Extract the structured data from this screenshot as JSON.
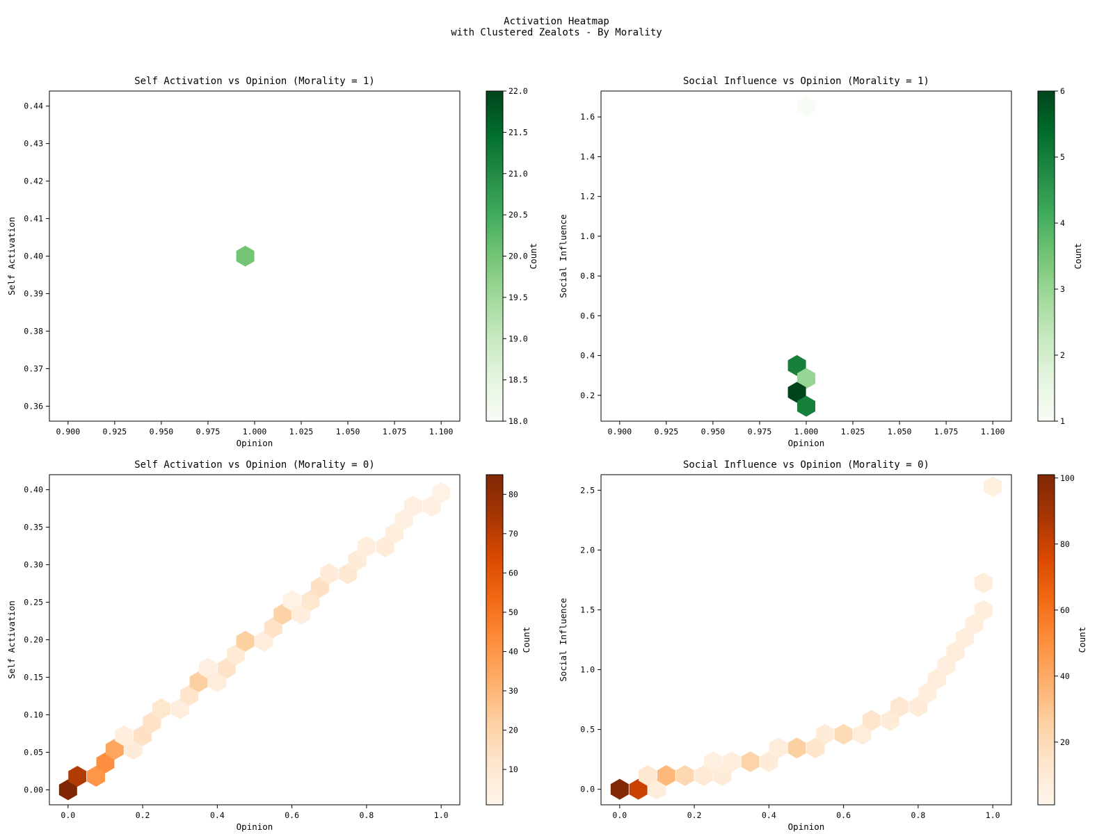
{
  "figure": {
    "title_line1": "Activation Heatmap",
    "title_line2": "with Clustered Zealots - By Morality"
  },
  "chart_data": [
    {
      "type": "heatmap",
      "title": "Self Activation vs Opinion (Morality = 1)",
      "xlabel": "Opinion",
      "ylabel": "Self Activation",
      "xlim": [
        0.89,
        1.11
      ],
      "ylim": [
        0.356,
        0.444
      ],
      "xticks": [
        0.9,
        0.925,
        0.95,
        0.975,
        1.0,
        1.025,
        1.05,
        1.075,
        1.1
      ],
      "xtick_labels": [
        "0.900",
        "0.925",
        "0.950",
        "0.975",
        "1.000",
        "1.025",
        "1.050",
        "1.075",
        "1.100"
      ],
      "yticks": [
        0.36,
        0.37,
        0.38,
        0.39,
        0.4,
        0.41,
        0.42,
        0.43,
        0.44
      ],
      "ytick_labels": [
        "0.36",
        "0.37",
        "0.38",
        "0.39",
        "0.40",
        "0.41",
        "0.42",
        "0.43",
        "0.44"
      ],
      "colorscale": "Greens",
      "colorbar": {
        "label": "Count",
        "min": 18.0,
        "max": 22.0,
        "ticks": [
          18.0,
          18.5,
          19.0,
          19.5,
          20.0,
          20.5,
          21.0,
          21.5,
          22.0
        ],
        "tick_labels": [
          "18.0",
          "18.5",
          "19.0",
          "19.5",
          "20.0",
          "20.5",
          "21.0",
          "21.5",
          "22.0"
        ]
      },
      "cells": [
        {
          "x": 0.995,
          "y": 0.4,
          "count": 20
        }
      ]
    },
    {
      "type": "heatmap",
      "title": "Social Influence vs Opinion (Morality = 1)",
      "xlabel": "Opinion",
      "ylabel": "Social Influence",
      "xlim": [
        0.89,
        1.11
      ],
      "ylim": [
        0.07,
        1.73
      ],
      "xticks": [
        0.9,
        0.925,
        0.95,
        0.975,
        1.0,
        1.025,
        1.05,
        1.075,
        1.1
      ],
      "xtick_labels": [
        "0.900",
        "0.925",
        "0.950",
        "0.975",
        "1.000",
        "1.025",
        "1.050",
        "1.075",
        "1.100"
      ],
      "yticks": [
        0.2,
        0.4,
        0.6,
        0.8,
        1.0,
        1.2,
        1.4,
        1.6
      ],
      "ytick_labels": [
        "0.2",
        "0.4",
        "0.6",
        "0.8",
        "1.0",
        "1.2",
        "1.4",
        "1.6"
      ],
      "colorscale": "Greens",
      "colorbar": {
        "label": "Count",
        "min": 1,
        "max": 6,
        "ticks": [
          1,
          2,
          3,
          4,
          5,
          6
        ],
        "tick_labels": [
          "1",
          "2",
          "3",
          "4",
          "5",
          "6"
        ]
      },
      "cells": [
        {
          "x": 1.0,
          "y": 1.655,
          "count": 1
        },
        {
          "x": 0.995,
          "y": 0.35,
          "count": 5
        },
        {
          "x": 1.0,
          "y": 0.285,
          "count": 3
        },
        {
          "x": 0.995,
          "y": 0.215,
          "count": 6
        },
        {
          "x": 1.0,
          "y": 0.145,
          "count": 5
        }
      ]
    },
    {
      "type": "heatmap",
      "title": "Self Activation vs Opinion (Morality = 0)",
      "xlabel": "Opinion",
      "ylabel": "Self Activation",
      "xlim": [
        -0.05,
        1.05
      ],
      "ylim": [
        -0.02,
        0.42
      ],
      "xticks": [
        0.0,
        0.2,
        0.4,
        0.6,
        0.8,
        1.0
      ],
      "xtick_labels": [
        "0.0",
        "0.2",
        "0.4",
        "0.6",
        "0.8",
        "1.0"
      ],
      "yticks": [
        0.0,
        0.05,
        0.1,
        0.15,
        0.2,
        0.25,
        0.3,
        0.35,
        0.4
      ],
      "ytick_labels": [
        "0.00",
        "0.05",
        "0.10",
        "0.15",
        "0.20",
        "0.25",
        "0.30",
        "0.35",
        "0.40"
      ],
      "colorscale": "Oranges",
      "colorbar": {
        "label": "Count",
        "min": 1,
        "max": 85,
        "ticks": [
          10,
          20,
          30,
          40,
          50,
          60,
          70,
          80
        ],
        "tick_labels": [
          "10",
          "20",
          "30",
          "40",
          "50",
          "60",
          "70",
          "80"
        ]
      },
      "cells": [
        {
          "x": 0.0,
          "y": 0.0,
          "count": 85
        },
        {
          "x": 0.025,
          "y": 0.018,
          "count": 72
        },
        {
          "x": 0.075,
          "y": 0.018,
          "count": 40
        },
        {
          "x": 0.1,
          "y": 0.036,
          "count": 42
        },
        {
          "x": 0.125,
          "y": 0.054,
          "count": 35
        },
        {
          "x": 0.15,
          "y": 0.072,
          "count": 6
        },
        {
          "x": 0.175,
          "y": 0.054,
          "count": 7
        },
        {
          "x": 0.2,
          "y": 0.072,
          "count": 14
        },
        {
          "x": 0.225,
          "y": 0.09,
          "count": 13
        },
        {
          "x": 0.25,
          "y": 0.108,
          "count": 11
        },
        {
          "x": 0.3,
          "y": 0.108,
          "count": 6
        },
        {
          "x": 0.325,
          "y": 0.126,
          "count": 12
        },
        {
          "x": 0.35,
          "y": 0.144,
          "count": 22
        },
        {
          "x": 0.375,
          "y": 0.162,
          "count": 5
        },
        {
          "x": 0.4,
          "y": 0.144,
          "count": 6
        },
        {
          "x": 0.425,
          "y": 0.162,
          "count": 13
        },
        {
          "x": 0.45,
          "y": 0.18,
          "count": 9
        },
        {
          "x": 0.475,
          "y": 0.198,
          "count": 22
        },
        {
          "x": 0.525,
          "y": 0.198,
          "count": 6
        },
        {
          "x": 0.55,
          "y": 0.216,
          "count": 13
        },
        {
          "x": 0.575,
          "y": 0.234,
          "count": 21
        },
        {
          "x": 0.6,
          "y": 0.252,
          "count": 4
        },
        {
          "x": 0.625,
          "y": 0.234,
          "count": 6
        },
        {
          "x": 0.65,
          "y": 0.252,
          "count": 11
        },
        {
          "x": 0.675,
          "y": 0.27,
          "count": 14
        },
        {
          "x": 0.7,
          "y": 0.288,
          "count": 8
        },
        {
          "x": 0.75,
          "y": 0.288,
          "count": 10
        },
        {
          "x": 0.775,
          "y": 0.306,
          "count": 8
        },
        {
          "x": 0.8,
          "y": 0.324,
          "count": 6
        },
        {
          "x": 0.85,
          "y": 0.324,
          "count": 8
        },
        {
          "x": 0.875,
          "y": 0.342,
          "count": 6
        },
        {
          "x": 0.9,
          "y": 0.36,
          "count": 5
        },
        {
          "x": 0.925,
          "y": 0.378,
          "count": 5
        },
        {
          "x": 0.975,
          "y": 0.378,
          "count": 5
        },
        {
          "x": 1.0,
          "y": 0.396,
          "count": 3
        }
      ]
    },
    {
      "type": "heatmap",
      "title": "Social Influence vs Opinion (Morality = 0)",
      "xlabel": "Opinion",
      "ylabel": "Social Influence",
      "xlim": [
        -0.05,
        1.05
      ],
      "ylim": [
        -0.13,
        2.63
      ],
      "xticks": [
        0.0,
        0.2,
        0.4,
        0.6,
        0.8,
        1.0
      ],
      "xtick_labels": [
        "0.0",
        "0.2",
        "0.4",
        "0.6",
        "0.8",
        "1.0"
      ],
      "yticks": [
        0.0,
        0.5,
        1.0,
        1.5,
        2.0,
        2.5
      ],
      "ytick_labels": [
        "0.0",
        "0.5",
        "1.0",
        "1.5",
        "2.0",
        "2.5"
      ],
      "colorscale": "Oranges",
      "colorbar": {
        "label": "Count",
        "min": 1,
        "max": 101,
        "ticks": [
          20,
          40,
          60,
          80,
          100
        ],
        "tick_labels": [
          "20",
          "40",
          "60",
          "80",
          "100"
        ]
      },
      "cells": [
        {
          "x": 0.0,
          "y": 0.0,
          "count": 100
        },
        {
          "x": 0.05,
          "y": 0.0,
          "count": 80
        },
        {
          "x": 0.1,
          "y": 0.0,
          "count": 8
        },
        {
          "x": 0.075,
          "y": 0.115,
          "count": 12
        },
        {
          "x": 0.125,
          "y": 0.115,
          "count": 35
        },
        {
          "x": 0.175,
          "y": 0.115,
          "count": 22
        },
        {
          "x": 0.225,
          "y": 0.115,
          "count": 11
        },
        {
          "x": 0.275,
          "y": 0.115,
          "count": 9
        },
        {
          "x": 0.25,
          "y": 0.23,
          "count": 6
        },
        {
          "x": 0.3,
          "y": 0.23,
          "count": 7
        },
        {
          "x": 0.35,
          "y": 0.23,
          "count": 24
        },
        {
          "x": 0.4,
          "y": 0.23,
          "count": 9
        },
        {
          "x": 0.425,
          "y": 0.345,
          "count": 8
        },
        {
          "x": 0.475,
          "y": 0.345,
          "count": 26
        },
        {
          "x": 0.525,
          "y": 0.345,
          "count": 14
        },
        {
          "x": 0.55,
          "y": 0.46,
          "count": 9
        },
        {
          "x": 0.6,
          "y": 0.46,
          "count": 20
        },
        {
          "x": 0.65,
          "y": 0.46,
          "count": 8
        },
        {
          "x": 0.675,
          "y": 0.575,
          "count": 14
        },
        {
          "x": 0.725,
          "y": 0.575,
          "count": 9
        },
        {
          "x": 0.75,
          "y": 0.69,
          "count": 12
        },
        {
          "x": 0.8,
          "y": 0.69,
          "count": 9
        },
        {
          "x": 0.825,
          "y": 0.805,
          "count": 7
        },
        {
          "x": 0.85,
          "y": 0.92,
          "count": 8
        },
        {
          "x": 0.875,
          "y": 1.035,
          "count": 7
        },
        {
          "x": 0.9,
          "y": 1.15,
          "count": 8
        },
        {
          "x": 0.925,
          "y": 1.265,
          "count": 7
        },
        {
          "x": 0.95,
          "y": 1.38,
          "count": 7
        },
        {
          "x": 0.975,
          "y": 1.495,
          "count": 7
        },
        {
          "x": 0.975,
          "y": 1.725,
          "count": 8
        },
        {
          "x": 1.0,
          "y": 2.53,
          "count": 6
        }
      ]
    }
  ]
}
